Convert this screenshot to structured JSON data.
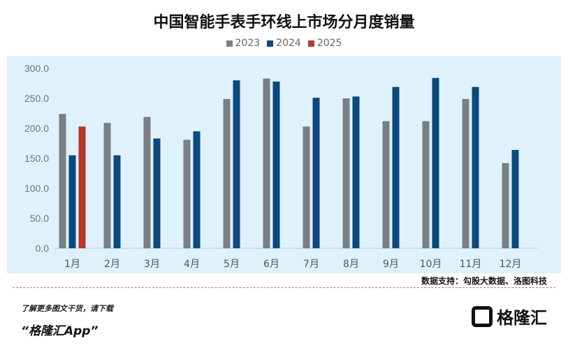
{
  "chart_data": {
    "type": "bar",
    "title": "中国智能手表手环线上市场分月度销量",
    "categories": [
      "1月",
      "2月",
      "3月",
      "4月",
      "5月",
      "6月",
      "7月",
      "8月",
      "9月",
      "10月",
      "11月",
      "12月"
    ],
    "series": [
      {
        "name": "2023",
        "color": "#7a7f84",
        "values": [
          224,
          209,
          219,
          181,
          249,
          283,
          203,
          250,
          212,
          212,
          249,
          142
        ]
      },
      {
        "name": "2024",
        "color": "#0c4a7e",
        "values": [
          155,
          155,
          183,
          195,
          280,
          278,
          251,
          253,
          269,
          284,
          269,
          164
        ]
      },
      {
        "name": "2025",
        "color": "#b8372a",
        "values": [
          203,
          null,
          null,
          null,
          null,
          null,
          null,
          null,
          null,
          null,
          null,
          null
        ]
      }
    ],
    "ylim": [
      0,
      300
    ],
    "yticks": [
      "0.0",
      "50.0",
      "100.0",
      "150.0",
      "200.0",
      "250.0",
      "300.0"
    ],
    "legend": "top",
    "grid": false
  },
  "source": "数据支持：勾股大数据、洛图科技",
  "promo_line1": "了解更多图文干货，请下载",
  "promo_line2": "“格隆汇App”",
  "logo_text": "格隆汇"
}
